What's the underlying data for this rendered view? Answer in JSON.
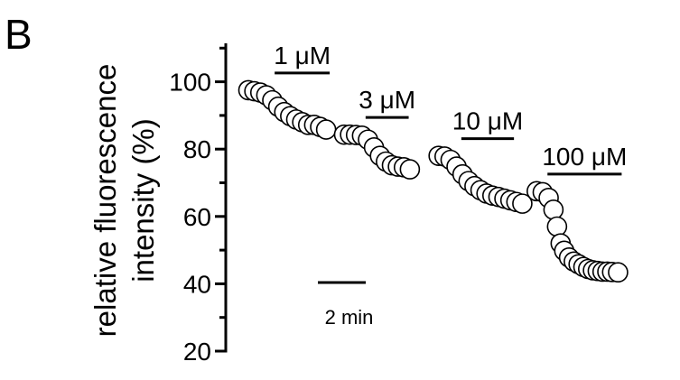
{
  "chart_data": {
    "type": "scatter",
    "panel_label": "B",
    "ylabel_lines": [
      "relative fluorescence",
      "intensity (%)"
    ],
    "y_ticks": [
      20,
      40,
      60,
      80,
      100
    ],
    "ylim": [
      20,
      110
    ],
    "grid": false,
    "scale_bar": {
      "label": "2 min",
      "value_min": 2
    },
    "groups": [
      {
        "label": "1 μM",
        "bar_start_min": 1.1,
        "bar_end_min": 3.4,
        "points": [
          {
            "x": 0.0,
            "y": 97.5
          },
          {
            "x": 0.25,
            "y": 97.2
          },
          {
            "x": 0.5,
            "y": 96.8
          },
          {
            "x": 0.75,
            "y": 96.0
          },
          {
            "x": 1.0,
            "y": 94.5
          },
          {
            "x": 1.25,
            "y": 92.6
          },
          {
            "x": 1.5,
            "y": 91.0
          },
          {
            "x": 1.75,
            "y": 89.8
          },
          {
            "x": 2.0,
            "y": 88.8
          },
          {
            "x": 2.25,
            "y": 88.0
          },
          {
            "x": 2.5,
            "y": 87.2
          },
          {
            "x": 2.75,
            "y": 87.2
          },
          {
            "x": 3.0,
            "y": 86.6
          },
          {
            "x": 3.25,
            "y": 85.8
          }
        ]
      },
      {
        "label": "3 μM",
        "bar_start_min": 4.9,
        "bar_end_min": 6.7,
        "points": [
          {
            "x": 4.0,
            "y": 84.3
          },
          {
            "x": 4.25,
            "y": 84.3
          },
          {
            "x": 4.5,
            "y": 84.2
          },
          {
            "x": 4.75,
            "y": 84.0
          },
          {
            "x": 5.0,
            "y": 82.8
          },
          {
            "x": 5.25,
            "y": 80.5
          },
          {
            "x": 5.5,
            "y": 78.0
          },
          {
            "x": 5.75,
            "y": 76.3
          },
          {
            "x": 6.0,
            "y": 75.2
          },
          {
            "x": 6.25,
            "y": 74.8
          },
          {
            "x": 6.5,
            "y": 74.6
          },
          {
            "x": 6.75,
            "y": 74.0
          }
        ]
      },
      {
        "label": "10 μM",
        "bar_start_min": 8.9,
        "bar_end_min": 11.1,
        "points": [
          {
            "x": 7.95,
            "y": 78.0
          },
          {
            "x": 8.2,
            "y": 77.8
          },
          {
            "x": 8.45,
            "y": 76.8
          },
          {
            "x": 8.7,
            "y": 74.8
          },
          {
            "x": 8.95,
            "y": 72.5
          },
          {
            "x": 9.2,
            "y": 70.5
          },
          {
            "x": 9.45,
            "y": 69.0
          },
          {
            "x": 9.7,
            "y": 67.8
          },
          {
            "x": 9.95,
            "y": 66.8
          },
          {
            "x": 10.2,
            "y": 66.2
          },
          {
            "x": 10.45,
            "y": 65.8
          },
          {
            "x": 10.7,
            "y": 65.3
          },
          {
            "x": 10.95,
            "y": 64.8
          },
          {
            "x": 11.2,
            "y": 64.3
          },
          {
            "x": 11.45,
            "y": 63.8
          }
        ]
      },
      {
        "label": "100 μM",
        "bar_start_min": 12.5,
        "bar_end_min": 15.6,
        "points": [
          {
            "x": 12.05,
            "y": 67.5
          },
          {
            "x": 12.3,
            "y": 67.2
          },
          {
            "x": 12.55,
            "y": 65.5
          },
          {
            "x": 12.75,
            "y": 62.0
          },
          {
            "x": 12.9,
            "y": 57.0
          },
          {
            "x": 13.05,
            "y": 52.0
          },
          {
            "x": 13.2,
            "y": 49.8
          },
          {
            "x": 13.4,
            "y": 47.8
          },
          {
            "x": 13.6,
            "y": 46.6
          },
          {
            "x": 13.8,
            "y": 45.8
          },
          {
            "x": 14.0,
            "y": 45.0
          },
          {
            "x": 14.2,
            "y": 44.4
          },
          {
            "x": 14.4,
            "y": 44.0
          },
          {
            "x": 14.6,
            "y": 43.8
          },
          {
            "x": 14.8,
            "y": 43.6
          },
          {
            "x": 15.0,
            "y": 43.6
          },
          {
            "x": 15.2,
            "y": 43.5
          },
          {
            "x": 15.45,
            "y": 43.4
          }
        ]
      }
    ]
  }
}
